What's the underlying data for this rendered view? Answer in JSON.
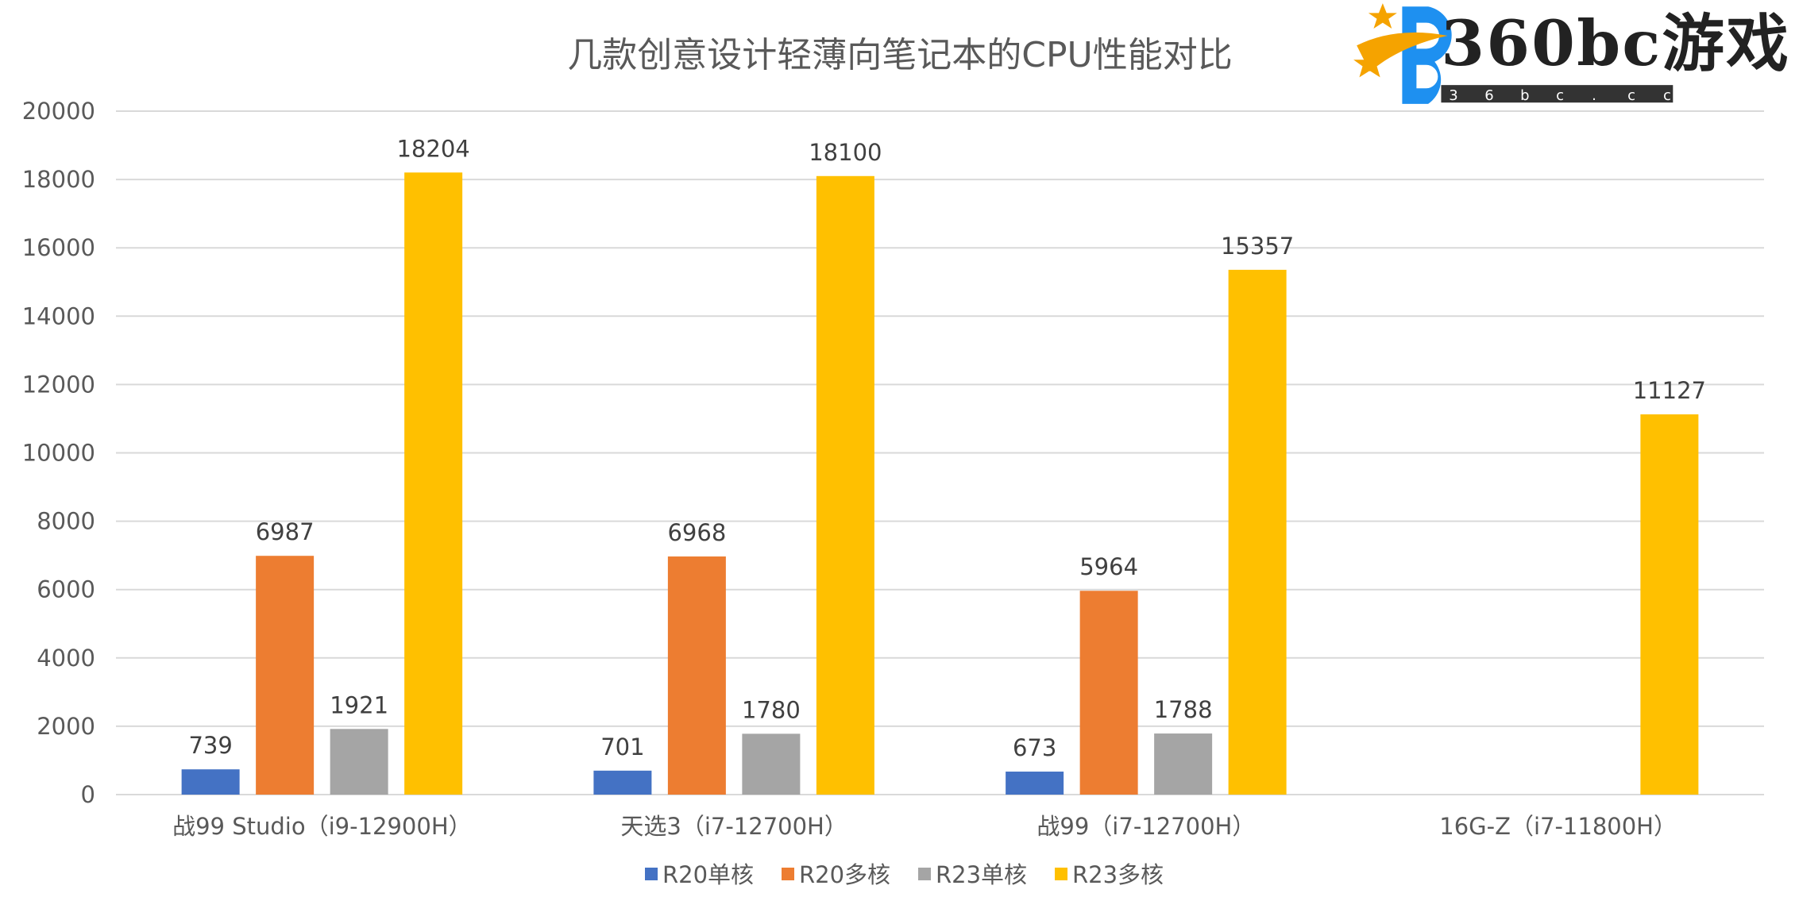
{
  "chart_data": {
    "type": "bar",
    "title": "几款创意设计轻薄向笔记本的CPU性能对比",
    "xlabel": "",
    "ylabel": "",
    "ylim": [
      0,
      20000
    ],
    "yticks": [
      0,
      2000,
      4000,
      6000,
      8000,
      10000,
      12000,
      14000,
      16000,
      18000,
      20000
    ],
    "grid": true,
    "legend_position": "bottom",
    "categories": [
      "战99 Studio（i9-12900H）",
      "天选3（i7-12700H）",
      "战99（i7-12700H）",
      "16G-Z（i7-11800H）"
    ],
    "series": [
      {
        "name": "R20单核",
        "color": "#4472C4",
        "values": [
          739,
          701,
          673,
          null
        ]
      },
      {
        "name": "R20多核",
        "color": "#ED7D31",
        "values": [
          6987,
          6968,
          5964,
          null
        ]
      },
      {
        "name": "R23单核",
        "color": "#A5A5A5",
        "values": [
          1921,
          1780,
          1788,
          null
        ]
      },
      {
        "name": "R23多核",
        "color": "#FFC000",
        "values": [
          18204,
          18100,
          15357,
          11127
        ]
      }
    ]
  },
  "watermark": {
    "brand": "360bc游戏",
    "domain_letters": [
      "3",
      "6",
      "b",
      "c",
      ".",
      "c",
      "c"
    ]
  }
}
